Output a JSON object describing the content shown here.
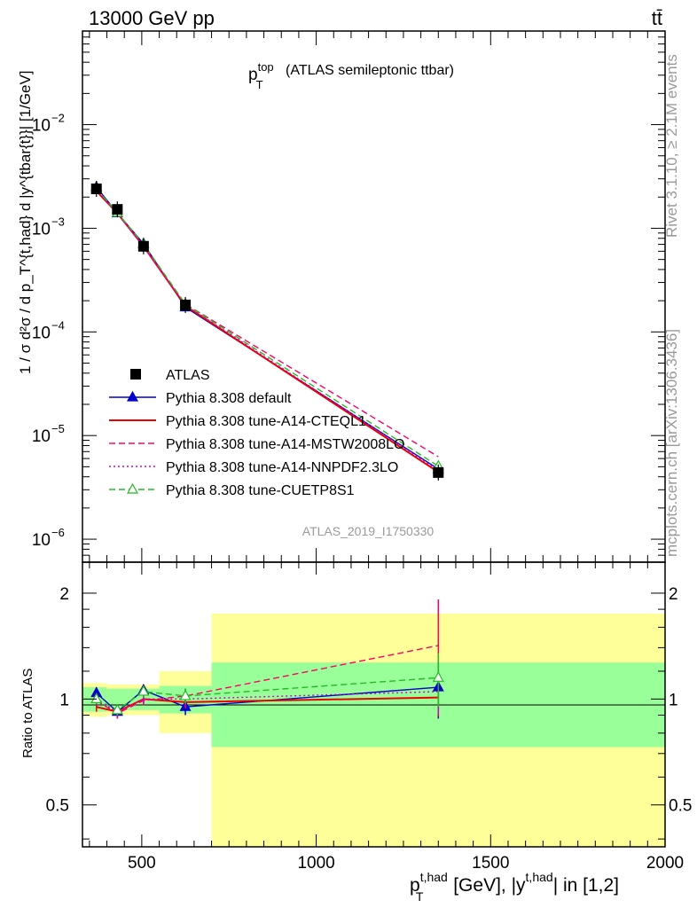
{
  "header": {
    "energy_label": "13000 GeV pp",
    "process_label": "tt̄"
  },
  "side": {
    "rivet_label": "Rivet 3.1.10, ≥ 2.1M events",
    "mcplots_label": "mcplots.cern.ch [arXiv:1306.3436]"
  },
  "main_plot": {
    "title_base": "p",
    "title_sup": "top",
    "title_sub": "T",
    "title_rest": "(ATLAS semileptonic ttbar)",
    "analysis_label": "ATLAS_2019_I1750330",
    "ylabel": "1 / σ d²σ / d p_T^{t,had} d |y^{tbar{t}}| [1/GeV]",
    "ytick_labels": [
      "10",
      "10",
      "10",
      "10",
      "10"
    ],
    "ytick_exponents": [
      "−2",
      "−3",
      "−4",
      "−5",
      "−6"
    ]
  },
  "ratio_plot": {
    "ylabel": "Ratio to ATLAS",
    "ytick_labels_left": [
      "2",
      "1",
      "0.5"
    ],
    "ytick_labels_right": [
      "2",
      "1",
      "0.5"
    ]
  },
  "x_axis": {
    "tick_labels": [
      "500",
      "1000",
      "1500",
      "2000"
    ],
    "label_main": "p",
    "label_sup": "t,had",
    "label_sub": "T",
    "label_unit": " [GeV], |y",
    "label_sup2": "t,had",
    "label_tail": "| in [1,2]"
  },
  "chart_data": {
    "type": "line",
    "scale_y": "log",
    "xlim": [
      330,
      2000
    ],
    "ylim": [
      6e-07,
      0.08
    ],
    "ratio_ylim": [
      0.38,
      2.45
    ],
    "x_bins": [
      [
        330,
        400
      ],
      [
        400,
        460
      ],
      [
        460,
        550
      ],
      [
        550,
        700
      ],
      [
        700,
        2000
      ]
    ],
    "x": [
      370,
      430,
      505,
      625,
      1350
    ],
    "data": {
      "name": "ATLAS",
      "y": [
        0.0024,
        0.00152,
        0.00067,
        0.000182,
        4.4e-06
      ],
      "stat_band_ratio": [
        0.08,
        0.07,
        0.07,
        0.09,
        0.27
      ],
      "total_band_ratio": [
        0.11,
        0.1,
        0.1,
        0.2,
        0.75
      ]
    },
    "series": [
      {
        "name": "Pythia 8.308 default",
        "color": "#0000cc",
        "style": "solid",
        "marker": "triangle-filled",
        "ratio": [
          1.04,
          0.92,
          1.06,
          0.95,
          1.08
        ],
        "ratio_err": [
          0.04,
          0.04,
          0.04,
          0.05,
          0.2
        ]
      },
      {
        "name": "Pythia 8.308 tune-A14-CTEQL1",
        "color": "#ee0000",
        "style": "solid",
        "marker": "none",
        "ratio": [
          0.95,
          0.92,
          1.0,
          0.98,
          1.01
        ],
        "ratio_err": [
          0.03,
          0.03,
          0.03,
          0.04,
          0.12
        ]
      },
      {
        "name": "Pythia 8.308 tune-A14-MSTW2008LO",
        "color": "#ff0066",
        "style": "dashed",
        "marker": "none",
        "ratio": [
          0.99,
          0.91,
          0.99,
          1.02,
          1.42
        ],
        "ratio_err": [
          0.03,
          0.03,
          0.03,
          0.05,
          0.5
        ]
      },
      {
        "name": "Pythia 8.308 tune-A14-NNPDF2.3LO",
        "color": "#cc00cc",
        "style": "dotted",
        "marker": "none",
        "ratio": [
          0.99,
          0.92,
          1.0,
          1.0,
          1.05
        ],
        "ratio_err": [
          0.03,
          0.03,
          0.03,
          0.05,
          0.15
        ]
      },
      {
        "name": "Pythia 8.308 tune-CUETP8S1",
        "color": "#22bb22",
        "style": "dashed",
        "marker": "triangle-open",
        "ratio": [
          1.0,
          0.93,
          1.05,
          1.02,
          1.15
        ],
        "ratio_err": [
          0.03,
          0.03,
          0.04,
          0.05,
          0.2
        ]
      }
    ]
  }
}
